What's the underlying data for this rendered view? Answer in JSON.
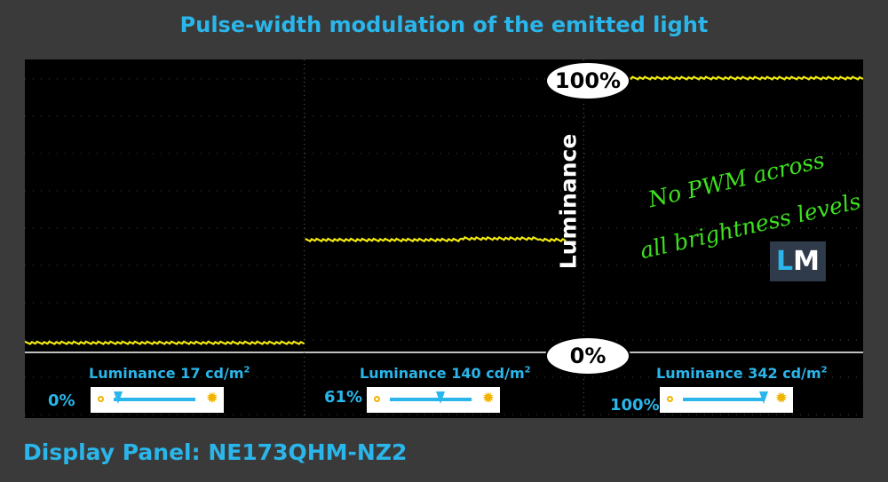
{
  "title": "Pulse-width modulation of the emitted light",
  "footer": "Display Panel: NE173QHM-NZ2",
  "colors": {
    "accent": "#2ab6ea",
    "trace": "#f2ea10",
    "note": "#3ee01f",
    "scope_bg": "#000000",
    "page_bg": "#3a3a3a"
  },
  "axis_label": "Luminance",
  "marker_top": "100%",
  "marker_bottom": "0%",
  "note_line1": "No PWM across",
  "note_line2": "all brightness levels",
  "logo": {
    "l": "L",
    "m": "M"
  },
  "indicators": [
    {
      "label": "Luminance 17 cd/m",
      "sup": "2",
      "pct": "0%",
      "slider_position": 0.0
    },
    {
      "label": "Luminance 140 cd/m",
      "sup": "2",
      "pct": "61%",
      "slider_position": 0.61
    },
    {
      "label": "Luminance 342 cd/m",
      "sup": "2",
      "pct": "100%",
      "slider_position": 1.0
    }
  ],
  "chart_data": {
    "type": "line",
    "title": "Pulse-width modulation of the emitted light",
    "ylabel": "Luminance",
    "ylim": [
      0,
      100
    ],
    "y_ticks": [
      "0%",
      "100%"
    ],
    "grid": true,
    "series": [
      {
        "name": "0%",
        "values": [
          3.5,
          3.5,
          3.5,
          3.5,
          3.5,
          3.5,
          3.5,
          3.5,
          3.5,
          3.5
        ]
      },
      {
        "name": "61%",
        "values": [
          41,
          41,
          41,
          41,
          41,
          41,
          41.5,
          41.5,
          41.5,
          41
        ]
      },
      {
        "name": "100%",
        "values": [
          100,
          100,
          100,
          100,
          100,
          100,
          100,
          100,
          100,
          100
        ]
      }
    ]
  }
}
